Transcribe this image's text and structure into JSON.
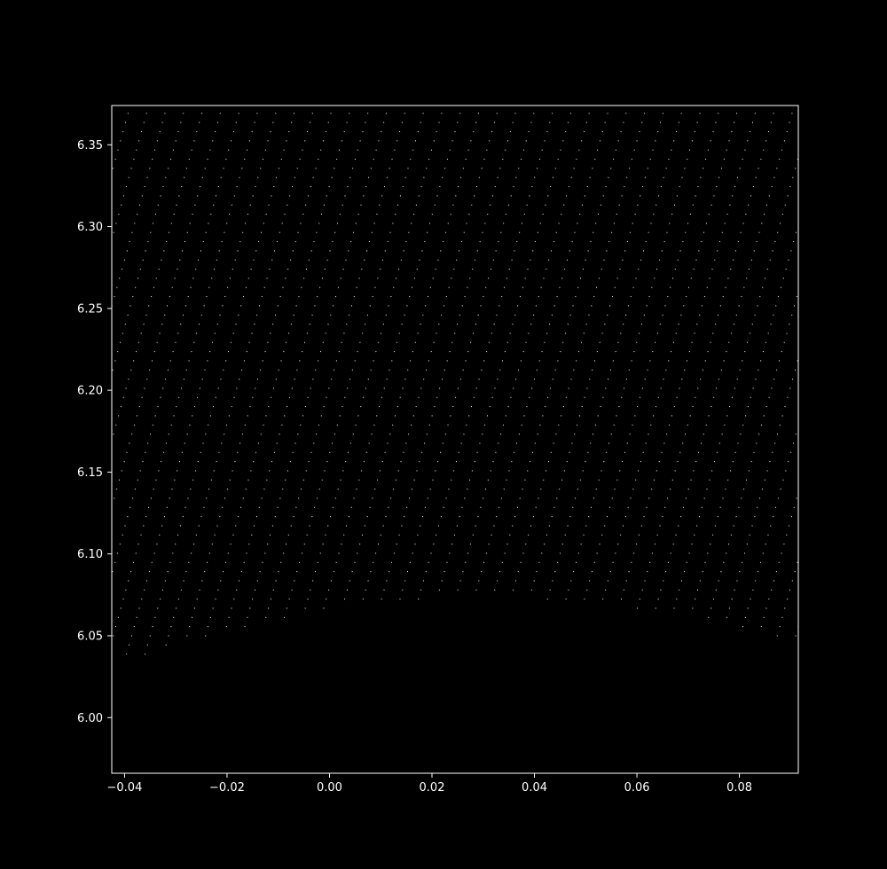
{
  "chart_data": {
    "type": "scatter",
    "title": "",
    "xlabel": "",
    "ylabel": "",
    "xlim": [
      -0.0425,
      0.0915
    ],
    "ylim": [
      5.966,
      6.374
    ],
    "x_ticks": [
      -0.04,
      -0.02,
      0.0,
      0.02,
      0.04,
      0.06,
      0.08
    ],
    "x_tick_labels": [
      "−0.04",
      "−0.02",
      "0.00",
      "0.02",
      "0.04",
      "0.06",
      "0.08"
    ],
    "y_ticks": [
      6.0,
      6.05,
      6.1,
      6.15,
      6.2,
      6.25,
      6.3,
      6.35
    ],
    "y_tick_labels": [
      "6.00",
      "6.05",
      "6.10",
      "6.15",
      "6.20",
      "6.25",
      "6.30",
      "6.35"
    ],
    "grid": false,
    "legend": "none",
    "background_color": "#000000",
    "foreground_color": "#ffffff",
    "point_color": "#ffffff",
    "series": [
      {
        "pattern": "diagonal dotted stripes",
        "stripe_spacing_x": 0.0036,
        "point_spacing_y": 0.0056,
        "stripe_dx_per_dy": 0.088,
        "lower_boundary": [
          {
            "x": -0.0425,
            "y": 6.033
          },
          {
            "x": -0.03,
            "y": 6.043
          },
          {
            "x": -0.02,
            "y": 6.052
          },
          {
            "x": -0.01,
            "y": 6.06
          },
          {
            "x": 0.0,
            "y": 6.066
          },
          {
            "x": 0.01,
            "y": 6.07
          },
          {
            "x": 0.02,
            "y": 6.073
          },
          {
            "x": 0.03,
            "y": 6.074
          },
          {
            "x": 0.04,
            "y": 6.073
          },
          {
            "x": 0.05,
            "y": 6.07
          },
          {
            "x": 0.06,
            "y": 6.066
          },
          {
            "x": 0.07,
            "y": 6.062
          },
          {
            "x": 0.08,
            "y": 6.054
          },
          {
            "x": 0.0915,
            "y": 6.045
          }
        ]
      }
    ]
  }
}
